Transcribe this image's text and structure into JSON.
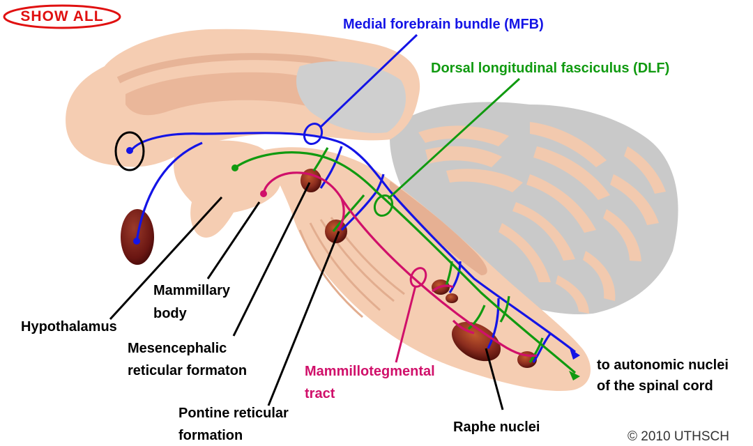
{
  "colors": {
    "mfb": "#1414e6",
    "dlf": "#109a10",
    "mammillotegmental": "#d0106a",
    "brain_fill": "#f5cdb2",
    "brain_dark": "#eab79a",
    "cerebellum_bg": "#c7c7c7",
    "nucleus": "#8a2c1e",
    "show_all": "#e01010"
  },
  "controls": {
    "show_all_label": "SHOW ALL"
  },
  "labels": {
    "mfb": "Medial forebrain bundle (MFB)",
    "dlf": "Dorsal longitudinal fasciculus (DLF)",
    "mammillary_body": [
      "Mammillary",
      "body"
    ],
    "hypothalamus": "Hypothalamus",
    "mesencephalic": [
      "Mesencephalic",
      "reticular formaton"
    ],
    "mammillotegmental": [
      "Mammillotegmental",
      "tract"
    ],
    "pontine": [
      "Pontine reticular",
      "formation"
    ],
    "raphe": "Raphe nuclei",
    "autonomic": [
      "to autonomic nuclei",
      "of the spinal cord"
    ]
  },
  "copyright": "© 2010 UTHSCH"
}
